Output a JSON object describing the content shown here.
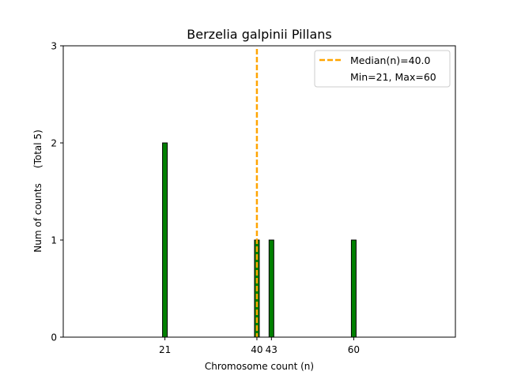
{
  "chart_data": {
    "type": "bar",
    "title": "Berzelia galpinii Pillans",
    "xlabel": "Chromosome count (n)",
    "ylabel": "Num of counts     (Total 5)",
    "x": [
      21,
      40,
      43,
      60
    ],
    "values": [
      2,
      1,
      1,
      1
    ],
    "xlim": [
      0,
      81
    ],
    "ylim": [
      0,
      3
    ],
    "xticks": [
      21,
      40,
      43,
      60
    ],
    "yticks": [
      0,
      1,
      2,
      3
    ],
    "bar_color": "#008000",
    "bar_edge_color": "#000000",
    "median": 40.0,
    "median_color": "#ffa500",
    "legend": {
      "placement": "top-right",
      "entries": [
        "Median(n)=40.0",
        "Min=21, Max=60"
      ]
    },
    "grid": false
  }
}
